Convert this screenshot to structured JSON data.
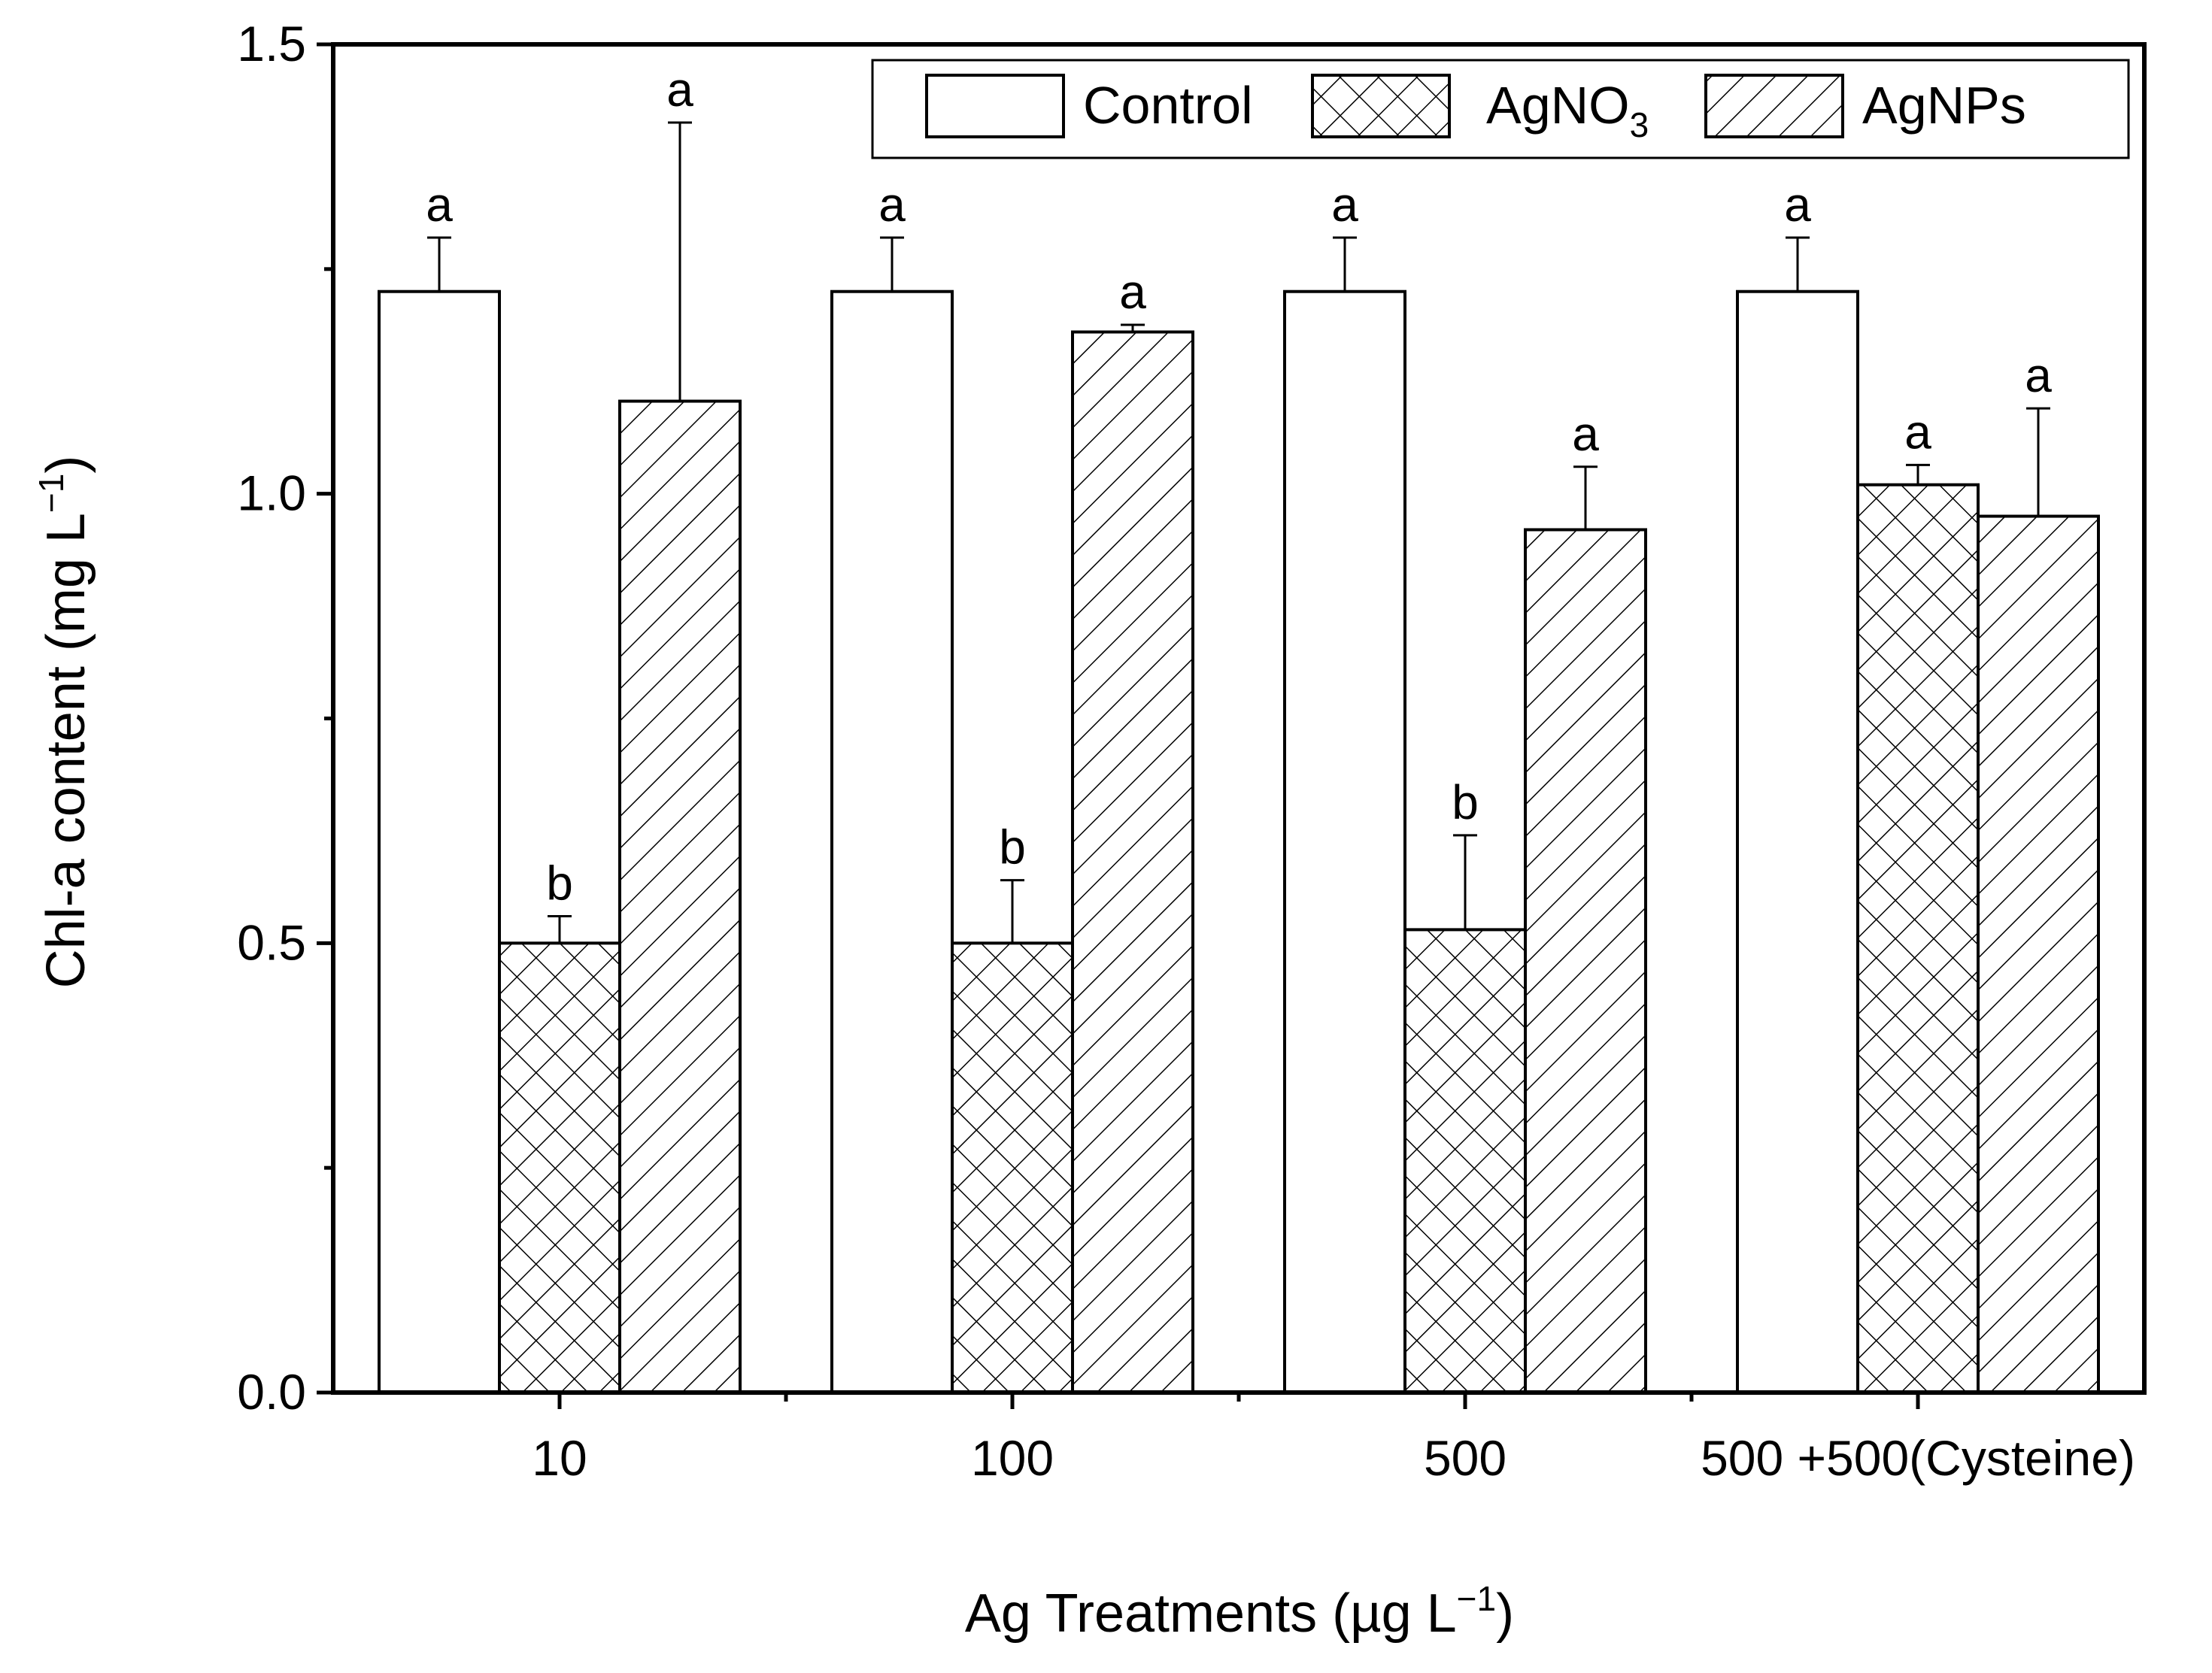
{
  "chart_data": {
    "type": "bar",
    "title": "",
    "xlabel": "Ag Treatments (µg L",
    "xlabel_sup": "−1",
    "xlabel_end": ")",
    "ylabel": "Chl-a content (mg L",
    "ylabel_sup": "−1",
    "ylabel_end": ")",
    "ylim": [
      0,
      1.5
    ],
    "yticks": [
      "0.0",
      "0.5",
      "1.0",
      "1.5"
    ],
    "categories": [
      "10",
      "100",
      "500",
      "500 +500(Cysteine)"
    ],
    "series": [
      {
        "name": "Control",
        "sub": "",
        "pattern": "none",
        "values": [
          1.225,
          1.225,
          1.225,
          1.225
        ],
        "errors": [
          0.06,
          0.06,
          0.06,
          0.06
        ],
        "labels": [
          "a",
          "a",
          "a",
          "a"
        ]
      },
      {
        "name": "AgNO",
        "sub": "3",
        "pattern": "crosshatch",
        "values": [
          0.5,
          0.5,
          0.515,
          1.01
        ],
        "errors": [
          0.03,
          0.07,
          0.105,
          0.022
        ],
        "labels": [
          "b",
          "b",
          "b",
          "a"
        ]
      },
      {
        "name": "AgNPs",
        "sub": "",
        "pattern": "diagonal",
        "values": [
          1.103,
          1.18,
          0.96,
          0.975
        ],
        "errors": [
          0.31,
          0.008,
          0.07,
          0.12
        ],
        "labels": [
          "a",
          "a",
          "a",
          "a"
        ]
      }
    ]
  }
}
